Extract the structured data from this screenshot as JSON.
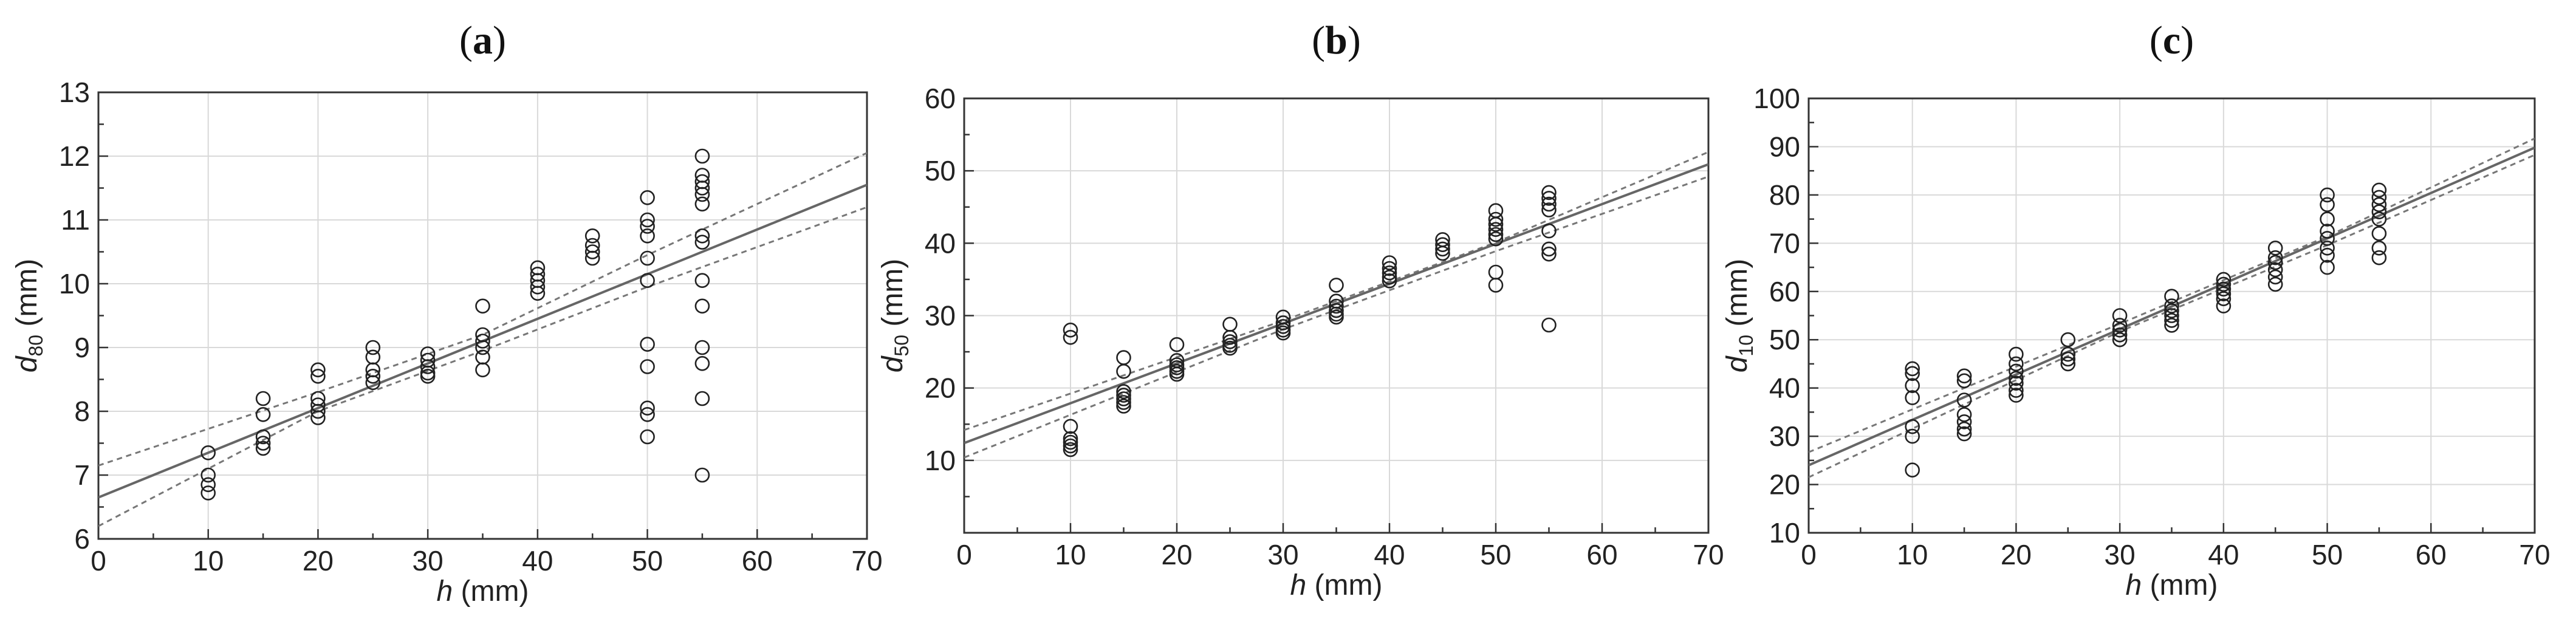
{
  "chart_data": [
    {
      "type": "scatter",
      "panel_label": "a",
      "xlabel": {
        "var": "h",
        "sub": "",
        "unit": " (mm)"
      },
      "ylabel": {
        "var": "d",
        "sub": "80",
        "unit": " (mm)"
      },
      "xlim": [
        0,
        70
      ],
      "ylim": [
        6,
        13
      ],
      "xticks": [
        0,
        10,
        20,
        30,
        40,
        50,
        60,
        70
      ],
      "yticks": [
        6,
        7,
        8,
        9,
        10,
        11,
        12,
        13
      ],
      "grid": true,
      "fit": {
        "slope": 0.07,
        "intercept": 6.65
      },
      "ci_upper": [
        [
          0,
          7.15
        ],
        [
          20,
          8.3
        ],
        [
          35,
          9.2
        ],
        [
          50,
          10.45
        ],
        [
          70,
          12.05
        ]
      ],
      "ci_lower": [
        [
          0,
          6.2
        ],
        [
          20,
          8.0
        ],
        [
          35,
          8.95
        ],
        [
          50,
          9.95
        ],
        [
          70,
          11.2
        ]
      ],
      "points": [
        [
          10,
          7.35
        ],
        [
          10,
          7.0
        ],
        [
          10,
          6.85
        ],
        [
          10,
          6.72
        ],
        [
          15,
          8.2
        ],
        [
          15,
          7.95
        ],
        [
          15,
          7.6
        ],
        [
          15,
          7.5
        ],
        [
          15,
          7.42
        ],
        [
          20,
          8.65
        ],
        [
          20,
          8.55
        ],
        [
          20,
          8.2
        ],
        [
          20,
          8.1
        ],
        [
          20,
          8.0
        ],
        [
          20,
          7.9
        ],
        [
          25,
          9.0
        ],
        [
          25,
          8.85
        ],
        [
          25,
          8.65
        ],
        [
          25,
          8.55
        ],
        [
          25,
          8.45
        ],
        [
          30,
          8.9
        ],
        [
          30,
          8.8
        ],
        [
          30,
          8.7
        ],
        [
          30,
          8.6
        ],
        [
          30,
          8.55
        ],
        [
          35,
          9.65
        ],
        [
          35,
          9.2
        ],
        [
          35,
          9.1
        ],
        [
          35,
          9.0
        ],
        [
          35,
          8.85
        ],
        [
          35,
          8.65
        ],
        [
          40,
          10.25
        ],
        [
          40,
          10.15
        ],
        [
          40,
          10.05
        ],
        [
          40,
          9.95
        ],
        [
          40,
          9.85
        ],
        [
          45,
          10.75
        ],
        [
          45,
          10.6
        ],
        [
          45,
          10.5
        ],
        [
          45,
          10.4
        ],
        [
          50,
          11.35
        ],
        [
          50,
          11.0
        ],
        [
          50,
          10.9
        ],
        [
          50,
          10.75
        ],
        [
          50,
          10.4
        ],
        [
          50,
          10.05
        ],
        [
          50,
          9.05
        ],
        [
          50,
          8.7
        ],
        [
          50,
          8.05
        ],
        [
          50,
          7.95
        ],
        [
          50,
          7.6
        ],
        [
          55,
          12.0
        ],
        [
          55,
          11.7
        ],
        [
          55,
          11.6
        ],
        [
          55,
          11.5
        ],
        [
          55,
          11.4
        ],
        [
          55,
          11.25
        ],
        [
          55,
          10.75
        ],
        [
          55,
          10.65
        ],
        [
          55,
          10.05
        ],
        [
          55,
          9.65
        ],
        [
          55,
          9.0
        ],
        [
          55,
          8.75
        ],
        [
          55,
          8.2
        ],
        [
          55,
          7.0
        ]
      ]
    },
    {
      "type": "scatter",
      "panel_label": "b",
      "xlabel": {
        "var": "h",
        "sub": "",
        "unit": " (mm)"
      },
      "ylabel": {
        "var": "d",
        "sub": "50",
        "unit": " (mm)"
      },
      "xlim": [
        0,
        70
      ],
      "ylim": [
        0,
        60
      ],
      "xticks": [
        0,
        10,
        20,
        30,
        40,
        50,
        60,
        70
      ],
      "yticks": [
        10,
        20,
        30,
        40,
        50,
        60
      ],
      "grid": true,
      "fit": {
        "slope": 0.55,
        "intercept": 12.4
      },
      "ci_upper": [
        [
          0,
          14.2
        ],
        [
          30,
          29.3
        ],
        [
          50,
          40.1
        ],
        [
          70,
          52.6
        ]
      ],
      "ci_lower": [
        [
          0,
          10.4
        ],
        [
          30,
          28.1
        ],
        [
          50,
          38.9
        ],
        [
          70,
          49.2
        ]
      ],
      "points": [
        [
          10,
          28.0
        ],
        [
          10,
          27.0
        ],
        [
          10,
          14.7
        ],
        [
          10,
          13.0
        ],
        [
          10,
          12.5
        ],
        [
          10,
          12.0
        ],
        [
          10,
          11.5
        ],
        [
          15,
          24.2
        ],
        [
          15,
          22.3
        ],
        [
          15,
          19.5
        ],
        [
          15,
          19.0
        ],
        [
          15,
          18.5
        ],
        [
          15,
          18.0
        ],
        [
          15,
          17.5
        ],
        [
          20,
          26.0
        ],
        [
          20,
          23.8
        ],
        [
          20,
          23.2
        ],
        [
          20,
          22.8
        ],
        [
          20,
          22.3
        ],
        [
          20,
          21.9
        ],
        [
          25,
          28.8
        ],
        [
          25,
          27.0
        ],
        [
          25,
          26.4
        ],
        [
          25,
          25.9
        ],
        [
          25,
          25.5
        ],
        [
          30,
          29.8
        ],
        [
          30,
          29.0
        ],
        [
          30,
          28.5
        ],
        [
          30,
          28.0
        ],
        [
          30,
          27.6
        ],
        [
          35,
          34.2
        ],
        [
          35,
          32.0
        ],
        [
          35,
          31.3
        ],
        [
          35,
          30.7
        ],
        [
          35,
          30.2
        ],
        [
          35,
          29.8
        ],
        [
          40,
          37.3
        ],
        [
          40,
          36.5
        ],
        [
          40,
          35.9
        ],
        [
          40,
          35.3
        ],
        [
          40,
          34.8
        ],
        [
          45,
          40.5
        ],
        [
          45,
          39.8
        ],
        [
          45,
          39.2
        ],
        [
          45,
          38.6
        ],
        [
          50,
          44.5
        ],
        [
          50,
          43.3
        ],
        [
          50,
          42.6
        ],
        [
          50,
          41.9
        ],
        [
          50,
          41.2
        ],
        [
          50,
          40.6
        ],
        [
          50,
          36.0
        ],
        [
          50,
          34.2
        ],
        [
          55,
          47.0
        ],
        [
          55,
          46.2
        ],
        [
          55,
          45.4
        ],
        [
          55,
          44.6
        ],
        [
          55,
          41.7
        ],
        [
          55,
          39.2
        ],
        [
          55,
          38.5
        ],
        [
          55,
          28.7
        ]
      ]
    },
    {
      "type": "scatter",
      "panel_label": "c",
      "xlabel": {
        "var": "h",
        "sub": "",
        "unit": " (mm)"
      },
      "ylabel": {
        "var": "d",
        "sub": "10",
        "unit": " (mm)"
      },
      "xlim": [
        0,
        70
      ],
      "ylim": [
        10,
        100
      ],
      "xticks": [
        0,
        10,
        20,
        30,
        40,
        50,
        60,
        70
      ],
      "yticks": [
        10,
        20,
        30,
        40,
        50,
        60,
        70,
        80,
        90,
        100
      ],
      "grid": true,
      "fit": {
        "slope": 0.94,
        "intercept": 24.0
      },
      "ci_upper": [
        [
          0,
          26.7
        ],
        [
          30,
          53.3
        ],
        [
          50,
          71.4
        ],
        [
          70,
          91.7
        ]
      ],
      "ci_lower": [
        [
          0,
          21.5
        ],
        [
          30,
          51.7
        ],
        [
          50,
          69.6
        ],
        [
          70,
          88.3
        ]
      ],
      "points": [
        [
          10,
          44.0
        ],
        [
          10,
          43.0
        ],
        [
          10,
          40.5
        ],
        [
          10,
          38.0
        ],
        [
          10,
          32.0
        ],
        [
          10,
          30.0
        ],
        [
          10,
          23.0
        ],
        [
          15,
          42.5
        ],
        [
          15,
          41.5
        ],
        [
          15,
          37.5
        ],
        [
          15,
          34.5
        ],
        [
          15,
          33.0
        ],
        [
          15,
          31.5
        ],
        [
          15,
          30.5
        ],
        [
          20,
          47.0
        ],
        [
          20,
          45.0
        ],
        [
          20,
          43.5
        ],
        [
          20,
          42.0
        ],
        [
          20,
          41.0
        ],
        [
          20,
          39.5
        ],
        [
          20,
          38.5
        ],
        [
          25,
          50.0
        ],
        [
          25,
          47.0
        ],
        [
          25,
          46.0
        ],
        [
          25,
          45.0
        ],
        [
          30,
          55.0
        ],
        [
          30,
          53.0
        ],
        [
          30,
          52.0
        ],
        [
          30,
          51.0
        ],
        [
          30,
          50.0
        ],
        [
          35,
          59.0
        ],
        [
          35,
          57.0
        ],
        [
          35,
          56.0
        ],
        [
          35,
          55.0
        ],
        [
          35,
          54.0
        ],
        [
          35,
          53.0
        ],
        [
          40,
          62.5
        ],
        [
          40,
          61.5
        ],
        [
          40,
          60.5
        ],
        [
          40,
          59.5
        ],
        [
          40,
          58.5
        ],
        [
          40,
          57.0
        ],
        [
          45,
          69.0
        ],
        [
          45,
          67.0
        ],
        [
          45,
          66.0
        ],
        [
          45,
          64.5
        ],
        [
          45,
          63.0
        ],
        [
          45,
          61.5
        ],
        [
          50,
          80.0
        ],
        [
          50,
          78.0
        ],
        [
          50,
          75.0
        ],
        [
          50,
          72.5
        ],
        [
          50,
          71.0
        ],
        [
          50,
          69.0
        ],
        [
          50,
          67.5
        ],
        [
          50,
          65.0
        ],
        [
          55,
          81.0
        ],
        [
          55,
          79.5
        ],
        [
          55,
          78.0
        ],
        [
          55,
          76.5
        ],
        [
          55,
          75.0
        ],
        [
          55,
          72.0
        ],
        [
          55,
          69.0
        ],
        [
          55,
          67.0
        ]
      ]
    }
  ]
}
